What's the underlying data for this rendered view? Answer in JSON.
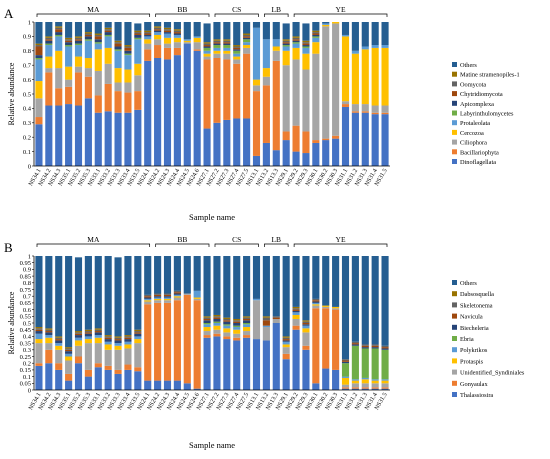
{
  "chart_data": [
    {
      "panel_label": "A",
      "type": "bar",
      "stacked": true,
      "ylabel": "Relative abundance",
      "xlabel": "Sample name",
      "ylim": [
        0,
        1
      ],
      "yticks": [
        0,
        0.1,
        0.2,
        0.3,
        0.4,
        0.5,
        0.6,
        0.7,
        0.8,
        0.9,
        1
      ],
      "groups": [
        {
          "name": "MA",
          "start": 0,
          "end": 11
        },
        {
          "name": "BB",
          "start": 12,
          "end": 17
        },
        {
          "name": "CS",
          "start": 18,
          "end": 22
        },
        {
          "name": "LB",
          "start": 23,
          "end": 25
        },
        {
          "name": "YE",
          "start": 26,
          "end": 35
        }
      ],
      "legend_position": "right",
      "categories": [
        "NS34.1",
        "NS34.2",
        "NS34.3",
        "NS35.1",
        "NS35.2",
        "NS35.3",
        "NS33.1",
        "NS33.2",
        "NS33.3",
        "NS33.4",
        "NS33.5",
        "NS24.1",
        "NS24.2",
        "NS24.3",
        "NS24.4",
        "NS24.5",
        "NS24.6",
        "NS27.1",
        "NS27.2",
        "NS27.3",
        "NS27.4",
        "NS27.5",
        "NS13.1",
        "NS13.2",
        "NS13.3",
        "NS29.1",
        "NS29.2",
        "NS29.3",
        "NS30.1",
        "NS30.2",
        "NS30.3",
        "NS31.1",
        "NS31.2",
        "NS31.3",
        "NS31.4",
        "NS31.5"
      ],
      "series": [
        {
          "name": "Dinoflagellata",
          "color": "#4472c4",
          "values": [
            0.29,
            0.42,
            0.42,
            0.43,
            0.42,
            0.47,
            0.37,
            0.38,
            0.37,
            0.37,
            0.39,
            0.73,
            0.75,
            0.74,
            0.77,
            0.85,
            0.8,
            0.26,
            0.3,
            0.32,
            0.33,
            0.33,
            0.07,
            0.16,
            0.11,
            0.18,
            0.1,
            0.09,
            0.16,
            0.18,
            0.19,
            0.41,
            0.37,
            0.37,
            0.36,
            0.36
          ]
        },
        {
          "name": "Bacillariophyta",
          "color": "#ed7d31",
          "values": [
            0.05,
            0.23,
            0.12,
            0.12,
            0.23,
            0.15,
            0.12,
            0.19,
            0.15,
            0.14,
            0.13,
            0.08,
            0.09,
            0.08,
            0.05,
            0.0,
            0.01,
            0.48,
            0.45,
            0.42,
            0.38,
            0.45,
            0.45,
            0.4,
            0.62,
            0.06,
            0.18,
            0.15,
            0.02,
            0.01,
            0.02,
            0.02,
            0.01,
            0.01,
            0.01,
            0.01
          ]
        },
        {
          "name": "Ciliophora",
          "color": "#a5a5a5",
          "values": [
            0.13,
            0.03,
            0.14,
            0.05,
            0.04,
            0.06,
            0.17,
            0.14,
            0.06,
            0.07,
            0.11,
            0.04,
            0.04,
            0.03,
            0.04,
            0.01,
            0.05,
            0.02,
            0.03,
            0.04,
            0.03,
            0.04,
            0.04,
            0.06,
            0.07,
            0.46,
            0.46,
            0.43,
            0.6,
            0.78,
            0.78,
            0.02,
            0.05,
            0.05,
            0.05,
            0.05
          ]
        },
        {
          "name": "Cercozoa",
          "color": "#ffc000",
          "values": [
            0.12,
            0.08,
            0.12,
            0.09,
            0.07,
            0.07,
            0.15,
            0.11,
            0.1,
            0.09,
            0.08,
            0.03,
            0.03,
            0.04,
            0.03,
            0.01,
            0.03,
            0.02,
            0.02,
            0.02,
            0.02,
            0.02,
            0.04,
            0.06,
            0.03,
            0.1,
            0.08,
            0.11,
            0.08,
            0.01,
            0.01,
            0.45,
            0.35,
            0.38,
            0.4,
            0.4
          ]
        },
        {
          "name": "Protaleolata",
          "color": "#5b9bd5",
          "values": [
            0.15,
            0.08,
            0.1,
            0.14,
            0.08,
            0.12,
            0.04,
            0.08,
            0.12,
            0.1,
            0.17,
            0.02,
            0.02,
            0.03,
            0.02,
            0.01,
            0.01,
            0.02,
            0.02,
            0.02,
            0.02,
            0.02,
            0.36,
            0.2,
            0.05,
            0.03,
            0.03,
            0.04,
            0.03,
            0.01,
            0.01,
            0.01,
            0.02,
            0.02,
            0.02,
            0.02
          ]
        },
        {
          "name": "Labyrinthulomycetes",
          "color": "#70ad47",
          "values": [
            0.01,
            0.01,
            0.01,
            0.01,
            0.01,
            0.01,
            0.01,
            0.01,
            0.01,
            0.01,
            0.01,
            0.0,
            0.0,
            0.0,
            0.0,
            0.0,
            0.0,
            0.02,
            0.02,
            0.02,
            0.02,
            0.02,
            0.0,
            0.0,
            0.0,
            0.01,
            0.01,
            0.01,
            0.01,
            0.0,
            0.0,
            0.0,
            0.0,
            0.0,
            0.0,
            0.0
          ]
        },
        {
          "name": "Apicomplexa",
          "color": "#264478",
          "values": [
            0.02,
            0.02,
            0.02,
            0.02,
            0.02,
            0.02,
            0.02,
            0.02,
            0.02,
            0.02,
            0.02,
            0.01,
            0.01,
            0.01,
            0.01,
            0.0,
            0.0,
            0.01,
            0.01,
            0.01,
            0.01,
            0.01,
            0.0,
            0.0,
            0.0,
            0.01,
            0.01,
            0.01,
            0.01,
            0.0,
            0.0,
            0.0,
            0.0,
            0.0,
            0.0,
            0.0
          ]
        },
        {
          "name": "Chytridiomycota",
          "color": "#9e480e",
          "values": [
            0.06,
            0.01,
            0.02,
            0.01,
            0.01,
            0.01,
            0.02,
            0.01,
            0.02,
            0.02,
            0.01,
            0.01,
            0.01,
            0.01,
            0.01,
            0.0,
            0.0,
            0.01,
            0.01,
            0.01,
            0.01,
            0.01,
            0.0,
            0.0,
            0.0,
            0.01,
            0.01,
            0.01,
            0.01,
            0.0,
            0.0,
            0.0,
            0.0,
            0.0,
            0.0,
            0.0
          ]
        },
        {
          "name": "Oomycota",
          "color": "#636363",
          "values": [
            0.01,
            0.01,
            0.01,
            0.01,
            0.01,
            0.01,
            0.01,
            0.01,
            0.01,
            0.01,
            0.01,
            0.01,
            0.01,
            0.01,
            0.01,
            0.0,
            0.0,
            0.01,
            0.01,
            0.01,
            0.01,
            0.01,
            0.0,
            0.0,
            0.0,
            0.01,
            0.01,
            0.01,
            0.01,
            0.0,
            0.0,
            0.0,
            0.0,
            0.0,
            0.0,
            0.0
          ]
        },
        {
          "name": "Matine stramenopiles-1",
          "color": "#997300",
          "values": [
            0.01,
            0.01,
            0.01,
            0.01,
            0.01,
            0.01,
            0.01,
            0.01,
            0.01,
            0.01,
            0.01,
            0.01,
            0.01,
            0.01,
            0.01,
            0.0,
            0.0,
            0.01,
            0.01,
            0.01,
            0.01,
            0.01,
            0.0,
            0.0,
            0.0,
            0.01,
            0.01,
            0.01,
            0.01,
            0.0,
            0.0,
            0.0,
            0.0,
            0.0,
            0.0,
            0.0
          ]
        },
        {
          "name": "Others",
          "color": "#255e91",
          "values": [
            0.15,
            0.1,
            0.03,
            0.11,
            0.1,
            0.07,
            0.08,
            0.04,
            0.13,
            0.16,
            0.05,
            0.06,
            0.03,
            0.04,
            0.05,
            0.12,
            0.1,
            0.13,
            0.12,
            0.12,
            0.16,
            0.08,
            0.04,
            0.12,
            0.12,
            0.11,
            0.1,
            0.12,
            0.06,
            0.01,
            0.01,
            0.09,
            0.2,
            0.17,
            0.16,
            0.16
          ]
        }
      ]
    },
    {
      "panel_label": "B",
      "type": "bar",
      "stacked": true,
      "ylabel": "Relative abundance",
      "xlabel": "Sample name",
      "ylim": [
        0,
        1
      ],
      "yticks": [
        0,
        0.05,
        0.1,
        0.15,
        0.2,
        0.25,
        0.3,
        0.35,
        0.4,
        0.45,
        0.5,
        0.55,
        0.6,
        0.65,
        0.7,
        0.75,
        0.8,
        0.85,
        0.9,
        0.95,
        1
      ],
      "groups": [
        {
          "name": "MA",
          "start": 0,
          "end": 11
        },
        {
          "name": "BB",
          "start": 12,
          "end": 17
        },
        {
          "name": "CS",
          "start": 18,
          "end": 22
        },
        {
          "name": "LB",
          "start": 23,
          "end": 25
        },
        {
          "name": "YE",
          "start": 26,
          "end": 35
        }
      ],
      "legend_position": "right",
      "categories": [
        "NS34.1",
        "NS34.2",
        "NS34.3",
        "NS35.1",
        "NS35.2",
        "NS35.3",
        "NS33.1",
        "NS33.2",
        "NS33.3",
        "NS33.4",
        "NS33.5",
        "NS24.1",
        "NS24.2",
        "NS24.3",
        "NS24.4",
        "NS24.5",
        "NS24.6",
        "NS27.1",
        "NS27.2",
        "NS27.3",
        "NS27.4",
        "NS27.5",
        "NS13.1",
        "NS13.2",
        "NS13.3",
        "NS29.1",
        "NS29.2",
        "NS29.3",
        "NS30.1",
        "NS30.2",
        "NS30.3",
        "NS31.1",
        "NS31.2",
        "NS31.3",
        "NS31.4",
        "NS31.5"
      ],
      "series": [
        {
          "name": "Thalassiosira",
          "color": "#4472c4",
          "values": [
            0.18,
            0.2,
            0.15,
            0.07,
            0.2,
            0.1,
            0.17,
            0.15,
            0.12,
            0.15,
            0.14,
            0.07,
            0.07,
            0.07,
            0.07,
            0.05,
            0.01,
            0.39,
            0.4,
            0.38,
            0.37,
            0.39,
            0.38,
            0.37,
            0.5,
            0.23,
            0.45,
            0.3,
            0.05,
            0.16,
            0.15,
            0.01,
            0.01,
            0.01,
            0.01,
            0.01
          ]
        },
        {
          "name": "Gonyaulax",
          "color": "#ed7d31",
          "values": [
            0.02,
            0.1,
            0.05,
            0.05,
            0.05,
            0.05,
            0.03,
            0.03,
            0.03,
            0.04,
            0.03,
            0.57,
            0.58,
            0.58,
            0.6,
            0.66,
            0.66,
            0.02,
            0.02,
            0.02,
            0.02,
            0.02,
            0.0,
            0.0,
            0.0,
            0.04,
            0.03,
            0.03,
            0.56,
            0.45,
            0.45,
            0.01,
            0.01,
            0.01,
            0.01,
            0.01
          ]
        },
        {
          "name": "Unidentified_Syndiniales",
          "color": "#a5a5a5",
          "values": [
            0.15,
            0.05,
            0.1,
            0.1,
            0.08,
            0.2,
            0.15,
            0.12,
            0.15,
            0.12,
            0.18,
            0.02,
            0.02,
            0.02,
            0.02,
            0.01,
            0.01,
            0.03,
            0.03,
            0.03,
            0.03,
            0.03,
            0.29,
            0.1,
            0.03,
            0.05,
            0.05,
            0.1,
            0.02,
            0.01,
            0.01,
            0.02,
            0.03,
            0.03,
            0.03,
            0.03
          ]
        },
        {
          "name": "Protaspis",
          "color": "#ffc000",
          "values": [
            0.03,
            0.04,
            0.03,
            0.03,
            0.04,
            0.03,
            0.04,
            0.04,
            0.03,
            0.03,
            0.03,
            0.01,
            0.01,
            0.01,
            0.01,
            0.0,
            0.01,
            0.03,
            0.03,
            0.03,
            0.03,
            0.03,
            0.0,
            0.0,
            0.0,
            0.02,
            0.03,
            0.03,
            0.01,
            0.01,
            0.01,
            0.05,
            0.02,
            0.03,
            0.02,
            0.02
          ]
        },
        {
          "name": "Polykrikos",
          "color": "#5b9bd5",
          "values": [
            0.04,
            0.02,
            0.02,
            0.02,
            0.02,
            0.02,
            0.02,
            0.02,
            0.02,
            0.02,
            0.02,
            0.01,
            0.01,
            0.01,
            0.01,
            0.0,
            0.05,
            0.02,
            0.02,
            0.02,
            0.02,
            0.02,
            0.01,
            0.01,
            0.0,
            0.02,
            0.02,
            0.02,
            0.01,
            0.0,
            0.0,
            0.01,
            0.01,
            0.01,
            0.01,
            0.01
          ]
        },
        {
          "name": "Ebria",
          "color": "#70ad47",
          "values": [
            0.0,
            0.0,
            0.0,
            0.0,
            0.0,
            0.0,
            0.0,
            0.0,
            0.0,
            0.0,
            0.0,
            0.0,
            0.0,
            0.0,
            0.0,
            0.0,
            0.0,
            0.01,
            0.01,
            0.01,
            0.01,
            0.01,
            0.0,
            0.0,
            0.0,
            0.0,
            0.0,
            0.0,
            0.0,
            0.0,
            0.0,
            0.1,
            0.25,
            0.22,
            0.23,
            0.22
          ]
        },
        {
          "name": "Biecheleria",
          "color": "#264478",
          "values": [
            0.02,
            0.02,
            0.02,
            0.02,
            0.02,
            0.02,
            0.02,
            0.02,
            0.02,
            0.02,
            0.02,
            0.01,
            0.01,
            0.01,
            0.01,
            0.0,
            0.0,
            0.02,
            0.02,
            0.02,
            0.02,
            0.02,
            0.0,
            0.0,
            0.0,
            0.01,
            0.01,
            0.01,
            0.01,
            0.0,
            0.0,
            0.01,
            0.01,
            0.01,
            0.01,
            0.01
          ]
        },
        {
          "name": "Navicula",
          "color": "#9e480e",
          "values": [
            0.01,
            0.01,
            0.01,
            0.01,
            0.01,
            0.01,
            0.01,
            0.01,
            0.01,
            0.01,
            0.01,
            0.01,
            0.01,
            0.01,
            0.01,
            0.0,
            0.0,
            0.01,
            0.01,
            0.01,
            0.01,
            0.01,
            0.0,
            0.04,
            0.01,
            0.01,
            0.01,
            0.01,
            0.01,
            0.0,
            0.0,
            0.01,
            0.01,
            0.01,
            0.01,
            0.01
          ]
        },
        {
          "name": "Skeletonema",
          "color": "#636363",
          "values": [
            0.01,
            0.01,
            0.01,
            0.01,
            0.01,
            0.01,
            0.01,
            0.01,
            0.01,
            0.01,
            0.01,
            0.01,
            0.01,
            0.01,
            0.01,
            0.0,
            0.0,
            0.01,
            0.01,
            0.01,
            0.01,
            0.01,
            0.0,
            0.02,
            0.01,
            0.01,
            0.01,
            0.01,
            0.01,
            0.0,
            0.0,
            0.01,
            0.01,
            0.01,
            0.01,
            0.01
          ]
        },
        {
          "name": "Dabsosquella",
          "color": "#997300",
          "values": [
            0.01,
            0.01,
            0.01,
            0.01,
            0.01,
            0.01,
            0.01,
            0.01,
            0.01,
            0.01,
            0.01,
            0.0,
            0.0,
            0.0,
            0.0,
            0.0,
            0.0,
            0.01,
            0.01,
            0.01,
            0.01,
            0.01,
            0.0,
            0.01,
            0.0,
            0.01,
            0.01,
            0.01,
            0.0,
            0.0,
            0.0,
            0.0,
            0.0,
            0.0,
            0.0,
            0.0
          ]
        },
        {
          "name": "Others",
          "color": "#255e91",
          "values": [
            0.53,
            0.54,
            0.6,
            0.68,
            0.55,
            0.55,
            0.55,
            0.6,
            0.59,
            0.59,
            0.55,
            0.29,
            0.28,
            0.28,
            0.26,
            0.28,
            0.26,
            0.45,
            0.44,
            0.46,
            0.47,
            0.45,
            0.32,
            0.45,
            0.45,
            0.6,
            0.38,
            0.48,
            0.33,
            0.37,
            0.38,
            0.77,
            0.65,
            0.67,
            0.67,
            0.68
          ]
        }
      ]
    }
  ]
}
